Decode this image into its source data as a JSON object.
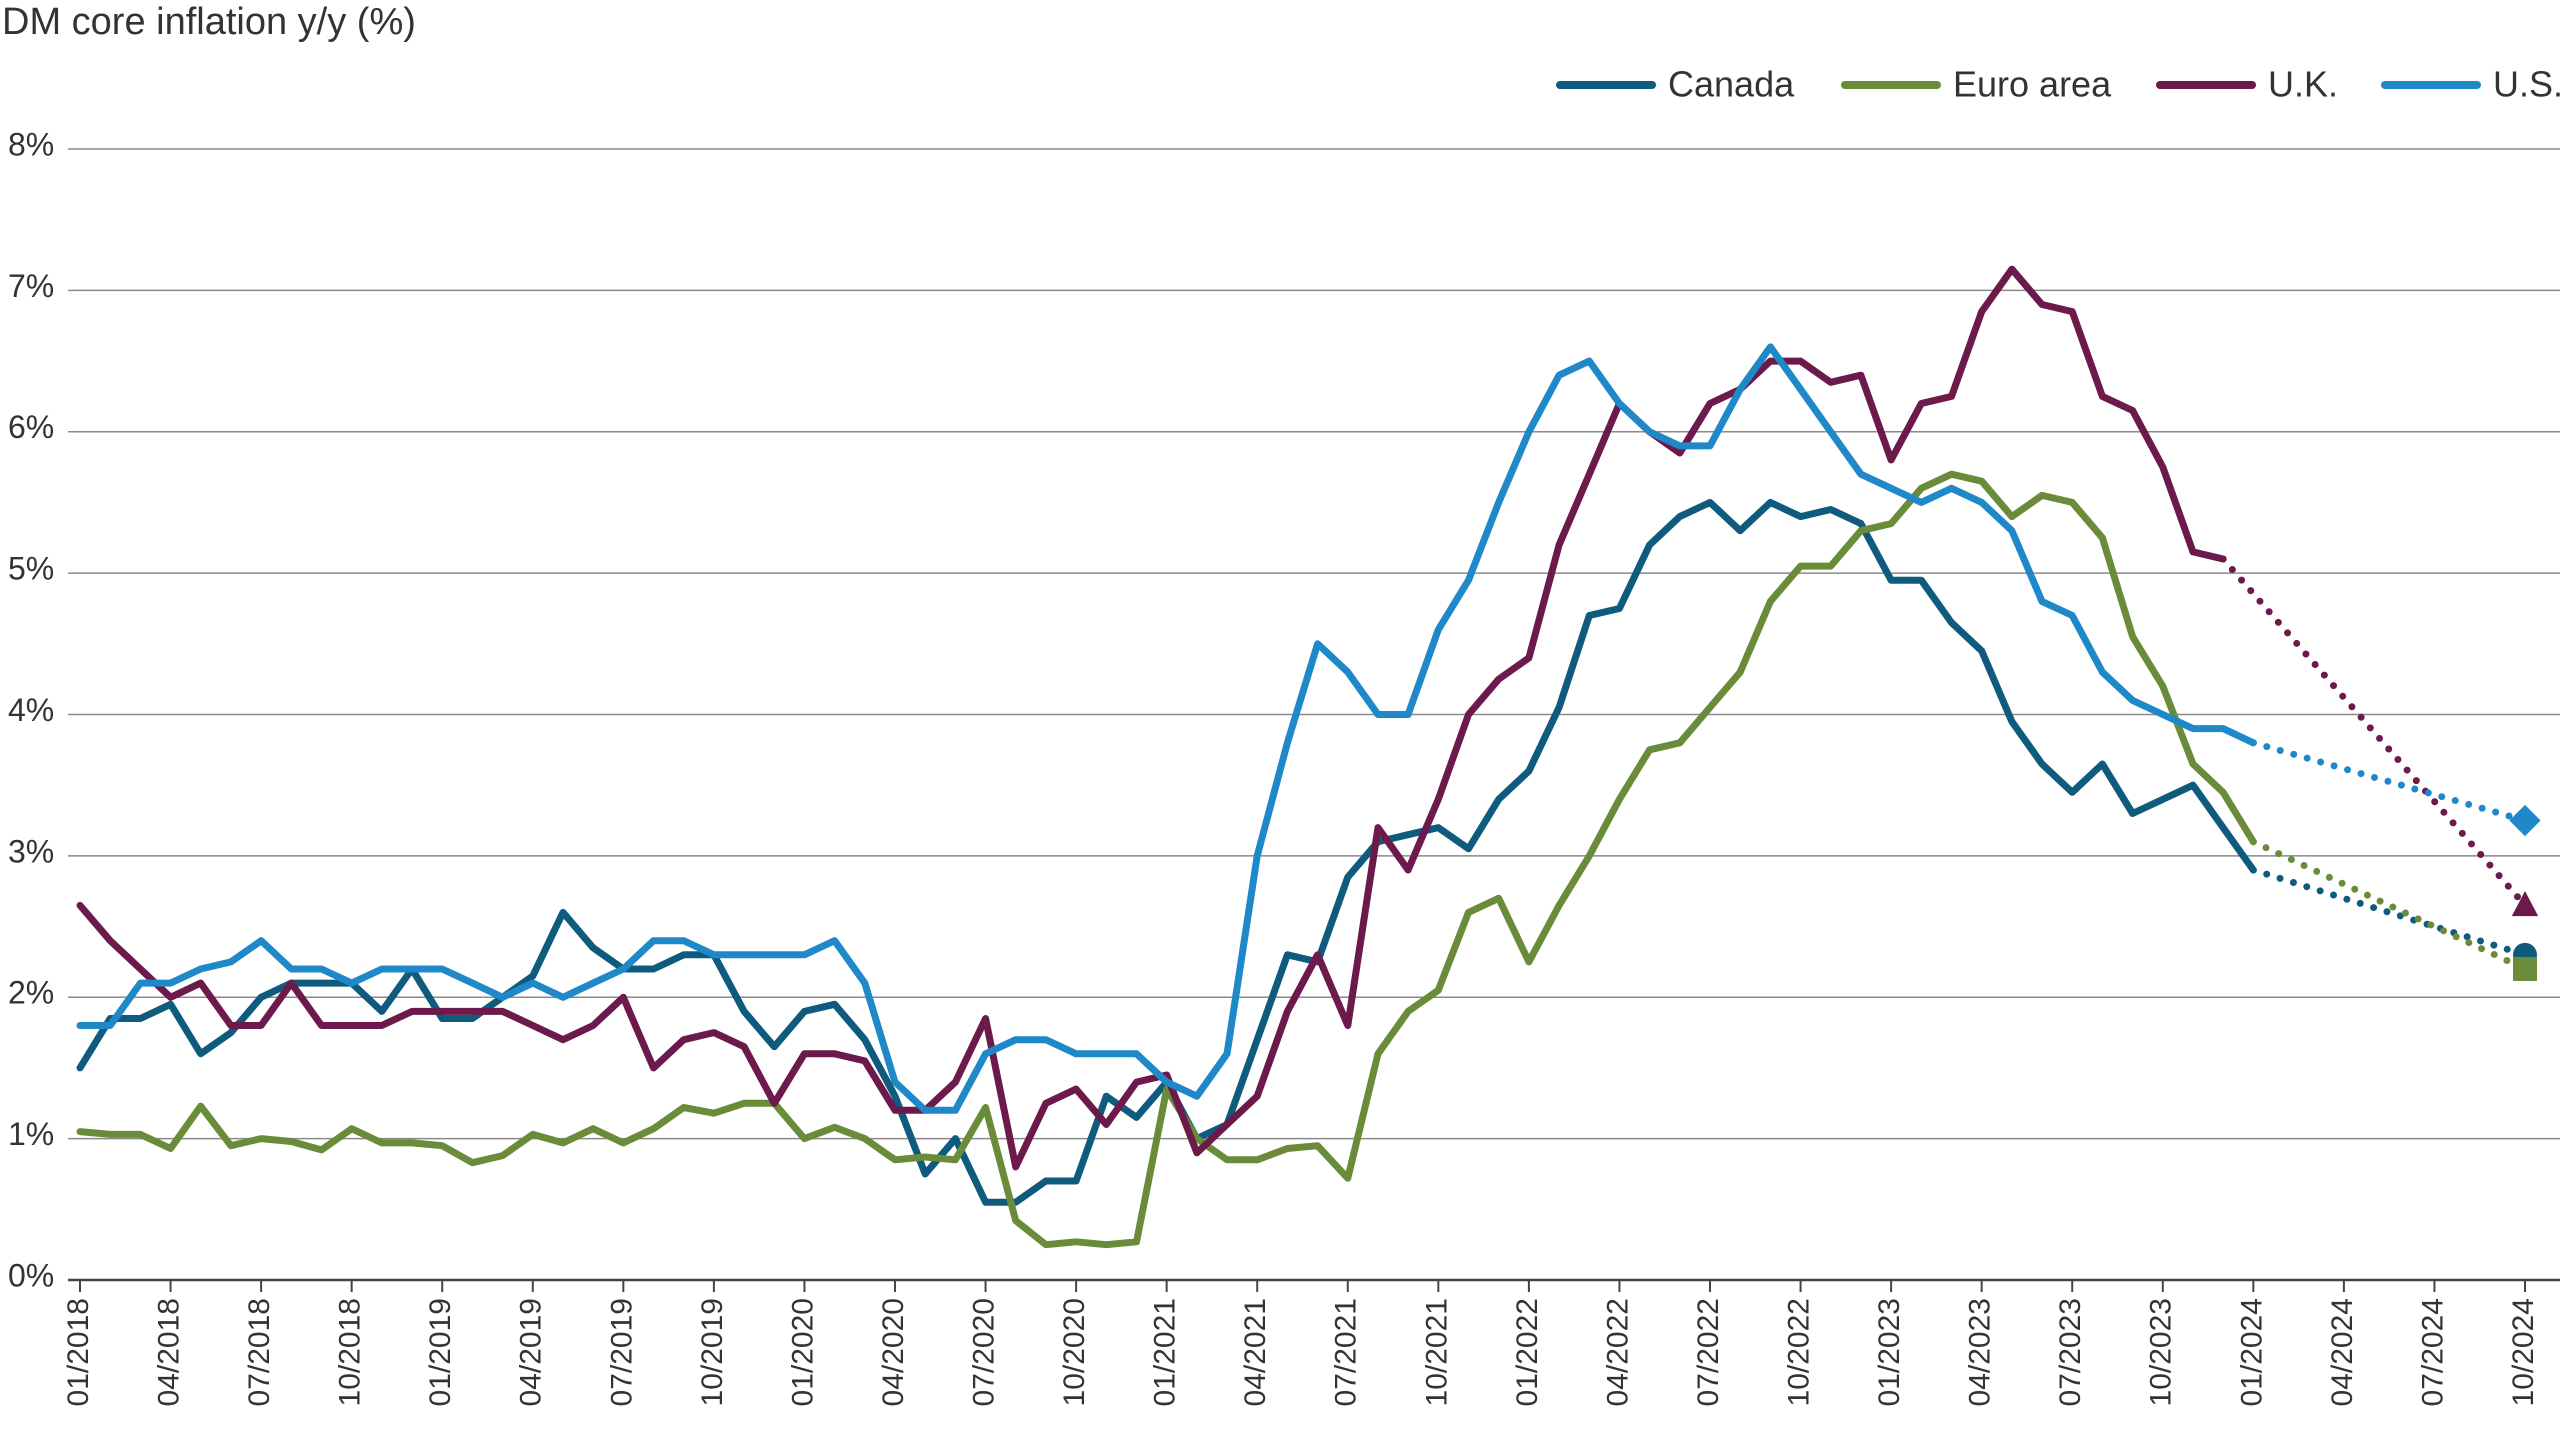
{
  "chart_data": {
    "type": "line",
    "title": "DM core inflation y/y (%)",
    "categories": [
      "01/2018",
      null,
      null,
      "04/2018",
      null,
      null,
      "07/2018",
      null,
      null,
      "10/2018",
      null,
      null,
      "01/2019",
      null,
      null,
      "04/2019",
      null,
      null,
      "07/2019",
      null,
      null,
      "10/2019",
      null,
      null,
      "01/2020",
      null,
      null,
      "04/2020",
      null,
      null,
      "07/2020",
      null,
      null,
      "10/2020",
      null,
      null,
      "01/2021",
      null,
      null,
      "04/2021",
      null,
      null,
      "07/2021",
      null,
      null,
      "10/2021",
      null,
      null,
      "01/2022",
      null,
      null,
      "04/2022",
      null,
      null,
      "07/2022",
      null,
      null,
      "10/2022",
      null,
      null,
      "01/2023",
      null,
      null,
      "04/2023",
      null,
      null,
      "07/2023",
      null,
      null,
      "10/2023",
      null,
      null,
      "01/2024",
      null,
      null,
      "04/2024",
      null,
      null,
      "07/2024",
      null,
      null,
      "10/2024"
    ],
    "ylim": [
      0,
      8
    ],
    "yticks": [
      {
        "value": 0,
        "label": "0%"
      },
      {
        "value": 1,
        "label": "1%"
      },
      {
        "value": 2,
        "label": "2%"
      },
      {
        "value": 3,
        "label": "3%"
      },
      {
        "value": 4,
        "label": "4%"
      },
      {
        "value": 5,
        "label": "5%"
      },
      {
        "value": 6,
        "label": "6%"
      },
      {
        "value": 7,
        "label": "7%"
      },
      {
        "value": 8,
        "label": "8%"
      }
    ],
    "grid": true,
    "legend": "top-right",
    "series": [
      {
        "name": "Canada",
        "color": "#0f5b7e",
        "marker": "circle",
        "values": [
          1.5,
          1.85,
          1.85,
          1.95,
          1.6,
          1.75,
          2.0,
          2.1,
          2.1,
          2.1,
          1.9,
          2.2,
          1.85,
          1.85,
          2.0,
          2.15,
          2.6,
          2.35,
          2.2,
          2.2,
          2.3,
          2.3,
          1.9,
          1.65,
          1.9,
          1.95,
          1.7,
          1.3,
          0.75,
          1.0,
          0.55,
          0.55,
          0.7,
          0.7,
          1.3,
          1.15,
          1.4,
          1.0,
          1.1,
          1.7,
          2.3,
          2.25,
          2.85,
          3.1,
          3.15,
          3.2,
          3.05,
          3.4,
          3.6,
          4.05,
          4.7,
          4.75,
          5.2,
          5.4,
          5.5,
          5.3,
          5.5,
          5.4,
          5.45,
          5.35,
          4.95,
          4.95,
          4.65,
          4.45,
          3.95,
          3.65,
          3.45,
          3.65,
          3.3,
          3.4,
          3.5,
          3.2,
          2.9,
          null,
          null,
          null,
          null,
          null,
          null,
          null,
          null,
          2.3
        ]
      },
      {
        "name": "Euro area",
        "color": "#6a8c3a",
        "marker": "square",
        "values": [
          1.05,
          1.03,
          1.03,
          0.93,
          1.23,
          0.95,
          1.0,
          0.98,
          0.92,
          1.07,
          0.97,
          0.97,
          0.95,
          0.83,
          0.88,
          1.03,
          0.97,
          1.07,
          0.97,
          1.07,
          1.22,
          1.18,
          1.25,
          1.25,
          1.0,
          1.08,
          1.0,
          0.85,
          0.87,
          0.85,
          1.22,
          0.42,
          0.25,
          0.27,
          0.25,
          0.27,
          1.35,
          1.0,
          0.85,
          0.85,
          0.93,
          0.95,
          0.72,
          1.6,
          1.9,
          2.05,
          2.6,
          2.7,
          2.25,
          2.65,
          3.0,
          3.4,
          3.75,
          3.8,
          4.05,
          4.3,
          4.8,
          5.05,
          5.05,
          5.3,
          5.35,
          5.6,
          5.7,
          5.65,
          5.4,
          5.55,
          5.5,
          5.25,
          4.55,
          4.2,
          3.65,
          3.45,
          3.1,
          null,
          null,
          null,
          null,
          null,
          null,
          null,
          null,
          2.2
        ]
      },
      {
        "name": "U.K.",
        "color": "#6b1a4b",
        "marker": "triangle",
        "values": [
          2.65,
          2.4,
          2.2,
          2.0,
          2.1,
          1.8,
          1.8,
          2.1,
          1.8,
          1.8,
          1.8,
          1.9,
          1.9,
          1.9,
          1.9,
          1.8,
          1.7,
          1.8,
          2.0,
          1.5,
          1.7,
          1.75,
          1.65,
          1.25,
          1.6,
          1.6,
          1.55,
          1.2,
          1.2,
          1.4,
          1.85,
          0.8,
          1.25,
          1.35,
          1.1,
          1.4,
          1.45,
          0.9,
          1.1,
          1.3,
          1.9,
          2.3,
          1.8,
          3.2,
          2.9,
          3.4,
          4.0,
          4.25,
          4.4,
          5.2,
          5.7,
          6.2,
          6.0,
          5.85,
          6.2,
          6.3,
          6.5,
          6.5,
          6.35,
          6.4,
          5.8,
          6.2,
          6.25,
          6.85,
          7.15,
          6.9,
          6.85,
          6.25,
          6.15,
          5.75,
          5.15,
          5.1,
          null,
          null,
          null,
          null,
          null,
          null,
          null,
          null,
          null,
          2.65
        ]
      },
      {
        "name": "U.S.",
        "color": "#1f88c8",
        "marker": "diamond",
        "values": [
          1.8,
          1.8,
          2.1,
          2.1,
          2.2,
          2.25,
          2.4,
          2.2,
          2.2,
          2.1,
          2.2,
          2.2,
          2.2,
          2.1,
          2.0,
          2.1,
          2.0,
          2.1,
          2.2,
          2.4,
          2.4,
          2.3,
          2.3,
          2.3,
          2.3,
          2.4,
          2.1,
          1.4,
          1.2,
          1.2,
          1.6,
          1.7,
          1.7,
          1.6,
          1.6,
          1.6,
          1.4,
          1.3,
          1.6,
          3.0,
          3.8,
          4.5,
          4.3,
          4.0,
          4.0,
          4.6,
          4.95,
          5.5,
          6.0,
          6.4,
          6.5,
          6.2,
          6.0,
          5.9,
          5.9,
          6.3,
          6.6,
          6.3,
          6.0,
          5.7,
          5.6,
          5.5,
          5.6,
          5.5,
          5.3,
          4.8,
          4.7,
          4.3,
          4.1,
          4.0,
          3.9,
          3.9,
          3.8,
          null,
          null,
          null,
          null,
          null,
          null,
          null,
          null,
          3.25
        ]
      }
    ]
  }
}
